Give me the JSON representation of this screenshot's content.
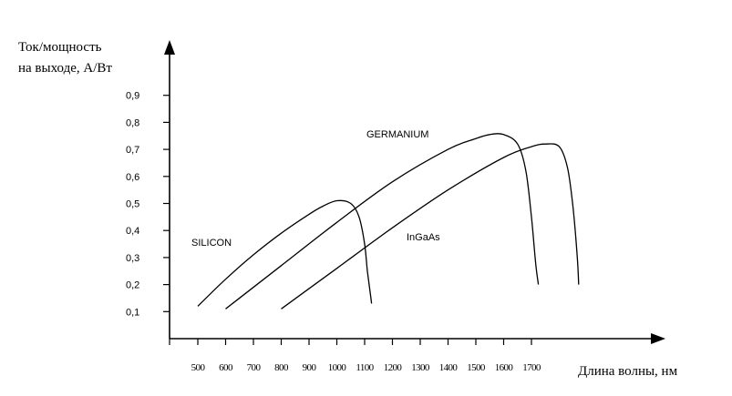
{
  "chart_data": {
    "type": "line",
    "ylabel_line1": "Ток/мощность",
    "ylabel_line2": "на выходе, А/Вт",
    "xlabel": "Длина волны, нм",
    "x_ticks": [
      "500",
      "600",
      "700",
      "800",
      "900",
      "1000",
      "1100",
      "1200",
      "1300",
      "1400",
      "1500",
      "1600",
      "1700"
    ],
    "y_ticks": [
      "0,1",
      "0,2",
      "0,3",
      "0,4",
      "0,5",
      "0,6",
      "0,7",
      "0,8",
      "0,9"
    ],
    "xlim": [
      400,
      2100
    ],
    "ylim": [
      0,
      1.0
    ],
    "grid": false,
    "series": [
      {
        "name": "SILICON",
        "x": [
          500,
          600,
          700,
          800,
          900,
          950,
          1000,
          1050,
          1080,
          1100,
          1110,
          1120,
          1125
        ],
        "y": [
          0.12,
          0.22,
          0.31,
          0.39,
          0.46,
          0.49,
          0.51,
          0.5,
          0.45,
          0.35,
          0.25,
          0.17,
          0.13
        ]
      },
      {
        "name": "GERMANIUM",
        "x": [
          600,
          800,
          1000,
          1200,
          1400,
          1500,
          1550,
          1600,
          1650,
          1680,
          1700,
          1715,
          1725
        ],
        "y": [
          0.11,
          0.27,
          0.43,
          0.58,
          0.7,
          0.74,
          0.755,
          0.755,
          0.72,
          0.62,
          0.45,
          0.28,
          0.2
        ]
      },
      {
        "name": "InGaAs",
        "x": [
          800,
          1000,
          1200,
          1400,
          1600,
          1700,
          1750,
          1800,
          1830,
          1850,
          1865,
          1870
        ],
        "y": [
          0.11,
          0.26,
          0.41,
          0.55,
          0.67,
          0.71,
          0.72,
          0.71,
          0.63,
          0.48,
          0.3,
          0.2
        ]
      }
    ]
  }
}
